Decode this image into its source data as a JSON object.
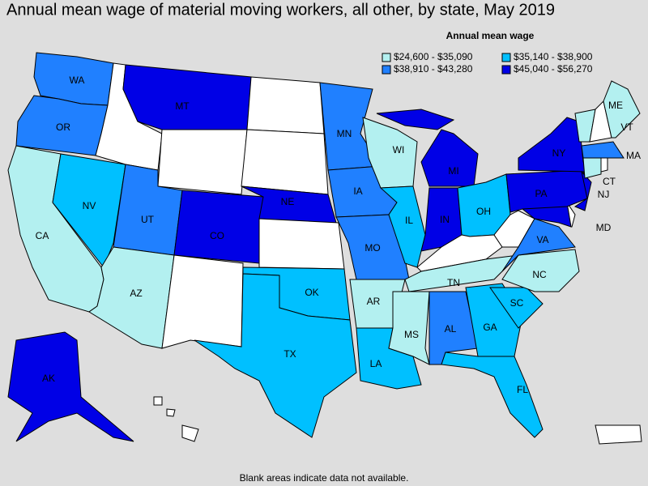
{
  "title": "Annual mean wage of material moving workers, all other, by state, May 2019",
  "legend": {
    "title": "Annual mean wage",
    "items": [
      {
        "label": "$24,600 - $35,090",
        "color": "#b3f0f0"
      },
      {
        "label": "$35,140 - $38,900",
        "color": "#00c0ff"
      },
      {
        "label": "$38,910 - $43,280",
        "color": "#2080ff"
      },
      {
        "label": "$45,040 - $56,270",
        "color": "#0000e6"
      }
    ]
  },
  "blank_color": "#ffffff",
  "states": [
    {
      "label": "WA",
      "class": 2
    },
    {
      "label": "OR",
      "class": 2
    },
    {
      "label": "CA",
      "class": 0
    },
    {
      "label": "NV",
      "class": 1
    },
    {
      "label": null,
      "class": null
    },
    {
      "label": "MT",
      "class": 3
    },
    {
      "label": null,
      "class": null
    },
    {
      "label": "UT",
      "class": 2
    },
    {
      "label": "CO",
      "class": 3
    },
    {
      "label": "AZ",
      "class": 0
    },
    {
      "label": null,
      "class": null
    },
    {
      "label": null,
      "class": null
    },
    {
      "label": null,
      "class": null
    },
    {
      "label": "NE",
      "class": 3
    },
    {
      "label": null,
      "class": null
    },
    {
      "label": "OK",
      "class": 1
    },
    {
      "label": "TX",
      "class": 1
    },
    {
      "label": "MN",
      "class": 2
    },
    {
      "label": "IA",
      "class": 2
    },
    {
      "label": "MO",
      "class": 2
    },
    {
      "label": "AR",
      "class": 0
    },
    {
      "label": "LA",
      "class": 1
    },
    {
      "label": "WI",
      "class": 0
    },
    {
      "label": "IL",
      "class": 1
    },
    {
      "label": "MI",
      "class": 3
    },
    {
      "label": "IN",
      "class": 3
    },
    {
      "label": "OH",
      "class": 1
    },
    {
      "label": null,
      "class": null
    },
    {
      "label": null,
      "class": null
    },
    {
      "label": "TN",
      "class": 0
    },
    {
      "label": "MS",
      "class": 0
    },
    {
      "label": "AL",
      "class": 2
    },
    {
      "label": "GA",
      "class": 1
    },
    {
      "label": "FL",
      "class": 1
    },
    {
      "label": "SC",
      "class": 1
    },
    {
      "label": "NC",
      "class": 0
    },
    {
      "label": "VA",
      "class": 2
    },
    {
      "label": "MD",
      "class": 3
    },
    {
      "label": null,
      "class": null
    },
    {
      "label": "PA",
      "class": 3
    },
    {
      "label": "NJ",
      "class": 3
    },
    {
      "label": "NY",
      "class": 3
    },
    {
      "label": "VT",
      "class": 0
    },
    {
      "label": null,
      "class": null
    },
    {
      "label": "ME",
      "class": 0
    },
    {
      "label": "MA",
      "class": 2
    },
    {
      "label": "CT",
      "class": 0
    },
    {
      "label": null,
      "class": null
    },
    {
      "label": "AK",
      "class": 3
    },
    {
      "label": null,
      "class": null
    },
    {
      "label": null,
      "class": null
    }
  ],
  "footnote": "Blank areas indicate data not available."
}
